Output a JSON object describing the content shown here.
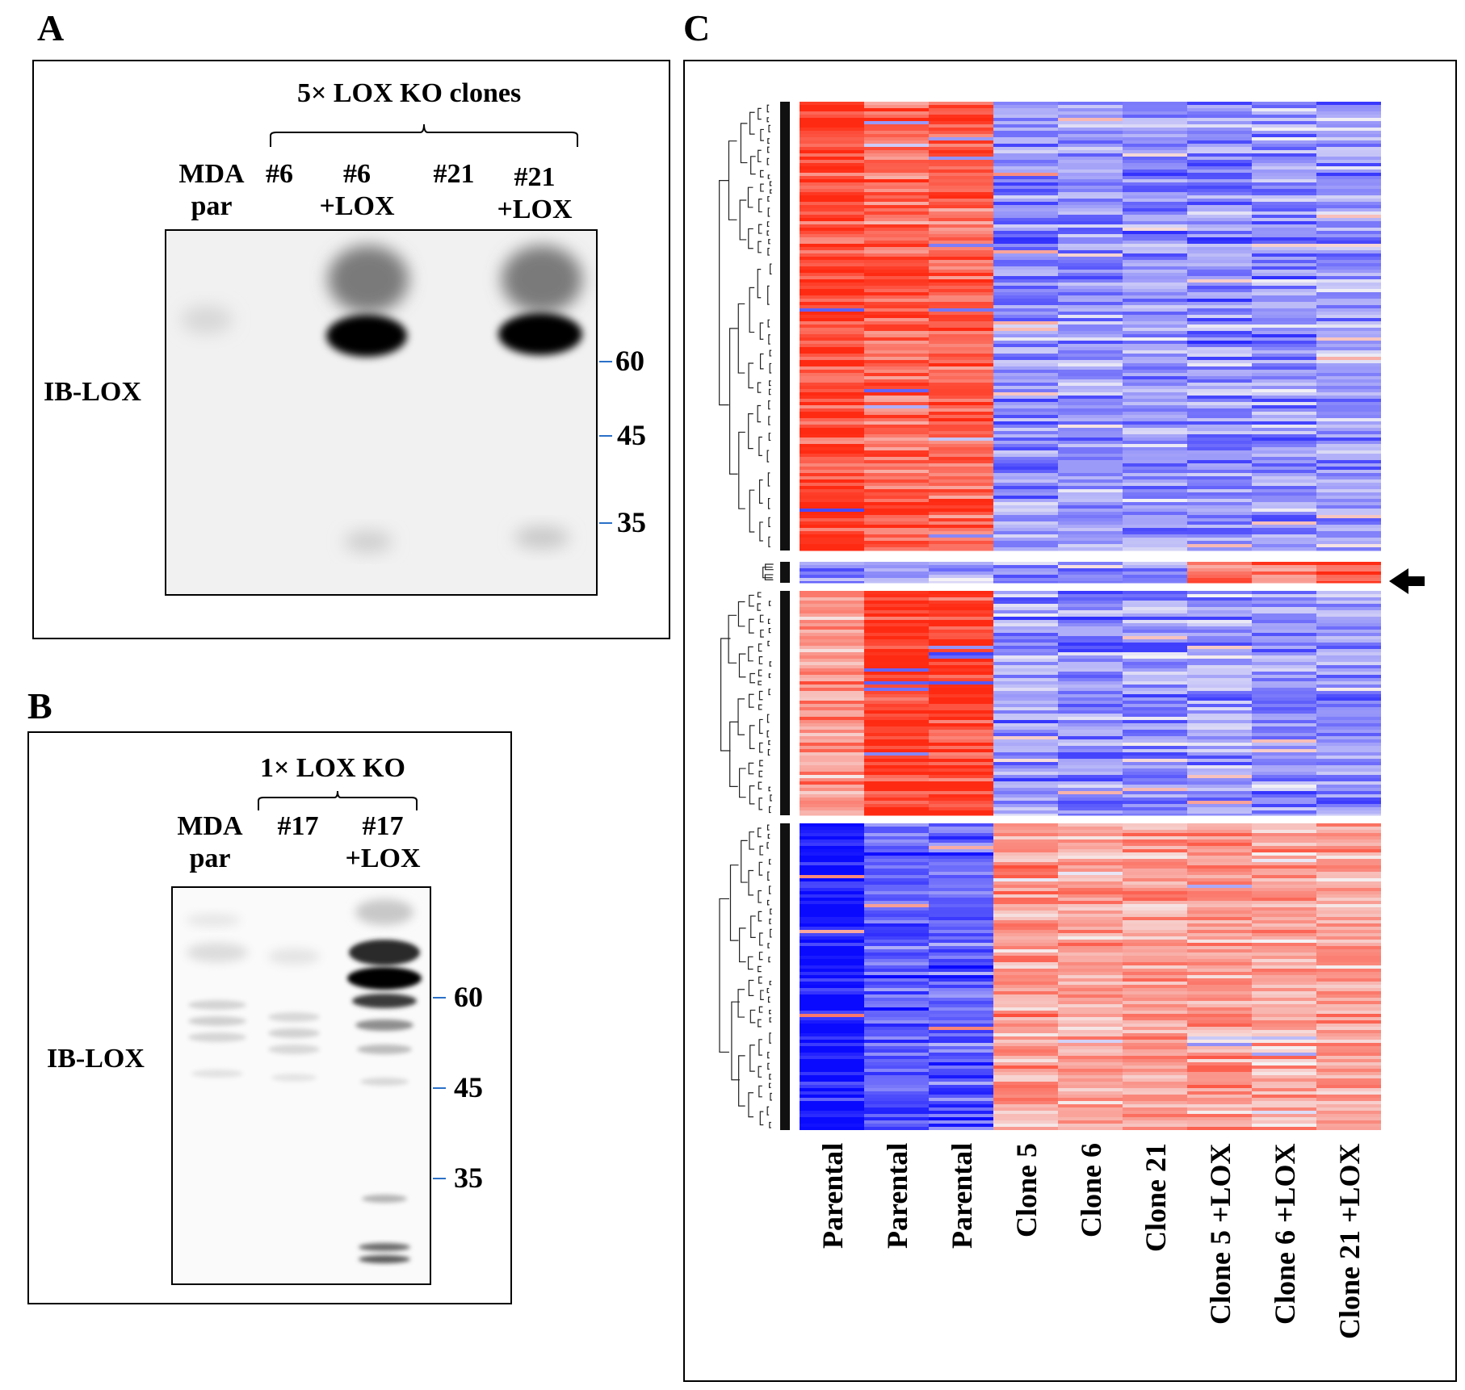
{
  "panels": {
    "A": {
      "letter": "A",
      "header": "5× LOX KO clones",
      "lanes": [
        {
          "line1": "MDA",
          "line2": "par"
        },
        {
          "line1": "#6",
          "line2": ""
        },
        {
          "line1": "#6",
          "line2": "+LOX"
        },
        {
          "line1": "#21",
          "line2": ""
        },
        {
          "line1": "#21",
          "line2": "+LOX"
        }
      ],
      "ib_label": "IB-LOX",
      "markers": [
        "60",
        "45",
        "35"
      ]
    },
    "B": {
      "letter": "B",
      "header": "1× LOX KO",
      "lanes": [
        {
          "line1": "MDA",
          "line2": "par"
        },
        {
          "line1": "#17",
          "line2": ""
        },
        {
          "line1": "#17",
          "line2": "+LOX"
        }
      ],
      "ib_label": "IB-LOX",
      "markers": [
        "60",
        "45",
        "35"
      ]
    },
    "C": {
      "letter": "C",
      "columns": [
        "Parental",
        "Parental",
        "Parental",
        "Clone 5",
        "Clone 6",
        "Clone 21",
        "Clone 5 +LOX",
        "Clone 6 +LOX",
        "Clone 21 +LOX"
      ],
      "arrow_icon": "left-arrow-icon",
      "colors": {
        "high": "#ff2a12",
        "mid": "#f5f3f5",
        "low": "#0a0aff"
      }
    }
  }
}
